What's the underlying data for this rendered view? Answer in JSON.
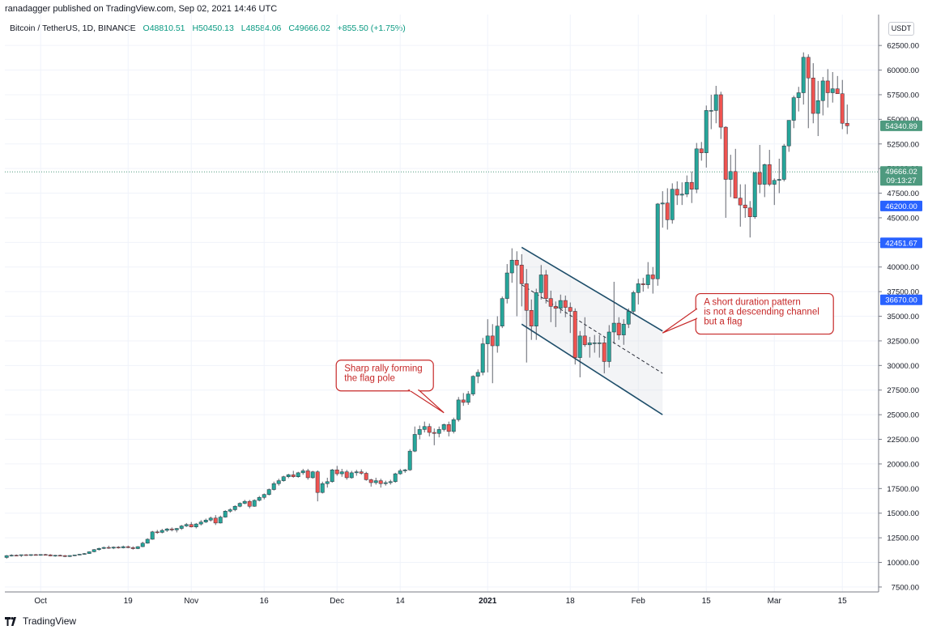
{
  "header": {
    "publisher": "ranadagger published on TradingView.com, Sep 02, 2021 14:46 UTC",
    "symbol": "Bitcoin / TetherUS, 1D, BINANCE",
    "open": "O48810.51",
    "high": "H50450.13",
    "low": "L48584.06",
    "close": "C49666.02",
    "change": "+855.50 (+1.75%)",
    "currency": "USDT"
  },
  "footer": {
    "brand": "TradingView"
  },
  "colors": {
    "up": "#26a69a",
    "down": "#ef5350",
    "accent_blue": "#2962ff",
    "price_green": "#4e9a7f",
    "annotation": "#c62828"
  },
  "icons": {
    "brand_logo": "tradingview-logo-icon"
  },
  "chart_data": {
    "type": "candlestick",
    "symbol": "BTCUSDT",
    "interval": "1D",
    "ylim": [
      7000,
      63500
    ],
    "y_scale": "linear",
    "grid": true,
    "y_ticks": [
      7500,
      10000,
      12500,
      15000,
      17500,
      20000,
      22500,
      25000,
      27500,
      30000,
      32500,
      35000,
      37500,
      40000,
      42500,
      45000,
      47500,
      50000,
      52500,
      55000,
      57500,
      60000,
      62500
    ],
    "x_ticks": [
      {
        "date": "2020-10-01",
        "label": "Oct"
      },
      {
        "date": "2020-10-19",
        "label": "19"
      },
      {
        "date": "2020-11-01",
        "label": "Nov"
      },
      {
        "date": "2020-11-16",
        "label": "16"
      },
      {
        "date": "2020-12-01",
        "label": "Dec"
      },
      {
        "date": "2020-12-14",
        "label": "14"
      },
      {
        "date": "2021-01-01",
        "label": "2021"
      },
      {
        "date": "2021-01-18",
        "label": "18"
      },
      {
        "date": "2021-02-01",
        "label": "Feb"
      },
      {
        "date": "2021-02-15",
        "label": "15"
      },
      {
        "date": "2021-03-01",
        "label": "Mar"
      },
      {
        "date": "2021-03-15",
        "label": "15"
      }
    ],
    "price_tags": [
      {
        "label": "54340.89",
        "value": 54340.89,
        "color": "#4e9a7f"
      },
      {
        "label": "49666.02",
        "sublabel": "09:13:27",
        "value": 49666.02,
        "color": "#4e9a7f"
      },
      {
        "label": "46200.00",
        "value": 46200,
        "color": "#2962ff"
      },
      {
        "label": "42451.67",
        "value": 42451.67,
        "color": "#2962ff"
      },
      {
        "label": "36670.00",
        "value": 36670,
        "color": "#2962ff"
      }
    ],
    "current_price_line": 49666.02,
    "channel": {
      "upper": [
        {
          "date": "2021-01-08",
          "value": 42000
        },
        {
          "date": "2021-02-06",
          "value": 33500
        }
      ],
      "lower": [
        {
          "date": "2021-01-08",
          "value": 34200
        },
        {
          "date": "2021-02-06",
          "value": 25000
        }
      ],
      "mid": [
        {
          "date": "2021-01-08",
          "value": 38200
        },
        {
          "date": "2021-02-06",
          "value": 29200
        }
      ]
    },
    "annotations": [
      {
        "text_lines": [
          "Sharp rally forming",
          "the flag pole"
        ],
        "date": "2020-12-15",
        "value": 27500,
        "target_date": "2020-12-23",
        "target_value": 25200
      },
      {
        "text_lines": [
          "A short duration pattern",
          "is not a descending channel",
          "but a flag"
        ],
        "date": "2021-02-07",
        "value": 35000,
        "target_date": "2021-02-06",
        "target_value": 33300
      }
    ],
    "start_date": "2020-09-24",
    "candles": [
      [
        10500,
        10750,
        10380,
        10690
      ],
      [
        10690,
        10820,
        10600,
        10730
      ],
      [
        10730,
        10800,
        10640,
        10700
      ],
      [
        10700,
        10760,
        10550,
        10780
      ],
      [
        10780,
        10830,
        10690,
        10740
      ],
      [
        10740,
        10800,
        10650,
        10790
      ],
      [
        10790,
        10850,
        10700,
        10760
      ],
      [
        10760,
        10820,
        10680,
        10800
      ],
      [
        10800,
        10860,
        10710,
        10770
      ],
      [
        10770,
        10840,
        10620,
        10660
      ],
      [
        10660,
        10760,
        10580,
        10720
      ],
      [
        10720,
        10790,
        10650,
        10690
      ],
      [
        10690,
        10750,
        10540,
        10600
      ],
      [
        10600,
        10720,
        10550,
        10700
      ],
      [
        10700,
        10780,
        10640,
        10760
      ],
      [
        10760,
        10860,
        10720,
        10830
      ],
      [
        10830,
        10950,
        10780,
        10900
      ],
      [
        10900,
        11120,
        10870,
        11080
      ],
      [
        11080,
        11350,
        11030,
        11300
      ],
      [
        11300,
        11500,
        11200,
        11420
      ],
      [
        11420,
        11600,
        11350,
        11520
      ],
      [
        11520,
        11700,
        11380,
        11450
      ],
      [
        11450,
        11620,
        11350,
        11550
      ],
      [
        11550,
        11650,
        11400,
        11480
      ],
      [
        11480,
        11700,
        11420,
        11600
      ],
      [
        11600,
        11700,
        11450,
        11500
      ],
      [
        11500,
        11640,
        11300,
        11400
      ],
      [
        11400,
        11650,
        11350,
        11600
      ],
      [
        11600,
        12100,
        11550,
        11950
      ],
      [
        11950,
        12450,
        11900,
        12350
      ],
      [
        12350,
        13200,
        12300,
        13100
      ],
      [
        13100,
        13300,
        12900,
        13050
      ],
      [
        13050,
        13400,
        12950,
        13250
      ],
      [
        13250,
        13500,
        13100,
        13400
      ],
      [
        13400,
        13550,
        13150,
        13300
      ],
      [
        13300,
        13500,
        13050,
        13450
      ],
      [
        13450,
        13800,
        13300,
        13700
      ],
      [
        13700,
        14000,
        13600,
        13850
      ],
      [
        13850,
        14100,
        13550,
        13600
      ],
      [
        13600,
        14000,
        13450,
        13900
      ],
      [
        13900,
        14300,
        13750,
        14100
      ],
      [
        14100,
        14450,
        14000,
        14300
      ],
      [
        14300,
        14650,
        14150,
        14500
      ],
      [
        14500,
        14800,
        13800,
        14000
      ],
      [
        14000,
        14750,
        13950,
        14600
      ],
      [
        14600,
        15300,
        14550,
        15200
      ],
      [
        15200,
        15500,
        15050,
        15350
      ],
      [
        15350,
        15800,
        15200,
        15700
      ],
      [
        15700,
        16100,
        15600,
        16000
      ],
      [
        16000,
        16350,
        15900,
        16200
      ],
      [
        16200,
        16350,
        15500,
        15700
      ],
      [
        15700,
        16400,
        15650,
        16300
      ],
      [
        16300,
        16750,
        16200,
        16600
      ],
      [
        16600,
        17000,
        16400,
        16900
      ],
      [
        16900,
        17500,
        16800,
        17400
      ],
      [
        17400,
        18200,
        17300,
        18000
      ],
      [
        18000,
        18500,
        17800,
        18300
      ],
      [
        18300,
        18800,
        18200,
        18700
      ],
      [
        18700,
        19000,
        18550,
        18900
      ],
      [
        18900,
        19300,
        18600,
        18700
      ],
      [
        18700,
        19200,
        18600,
        19100
      ],
      [
        19100,
        19500,
        18900,
        19300
      ],
      [
        19300,
        19500,
        18400,
        18600
      ],
      [
        18600,
        19300,
        18500,
        19200
      ],
      [
        19200,
        19350,
        16200,
        17100
      ],
      [
        17100,
        18200,
        17000,
        18000
      ],
      [
        18000,
        18600,
        17600,
        18200
      ],
      [
        18200,
        19500,
        18100,
        19400
      ],
      [
        19400,
        19800,
        18800,
        19000
      ],
      [
        19000,
        19500,
        18700,
        19200
      ],
      [
        19200,
        19400,
        18400,
        18600
      ],
      [
        18600,
        19300,
        18500,
        19100
      ],
      [
        19100,
        19400,
        18800,
        19200
      ],
      [
        19200,
        19450,
        18900,
        19050
      ],
      [
        19050,
        19200,
        18300,
        18400
      ],
      [
        18400,
        18500,
        17700,
        18100
      ],
      [
        18100,
        18600,
        17900,
        18300
      ],
      [
        18300,
        18500,
        17600,
        18000
      ],
      [
        18000,
        18300,
        17800,
        18100
      ],
      [
        18100,
        18400,
        17900,
        18200
      ],
      [
        18200,
        19100,
        18100,
        19000
      ],
      [
        19000,
        19500,
        18900,
        19300
      ],
      [
        19300,
        19500,
        19100,
        19400
      ],
      [
        19400,
        21500,
        19300,
        21300
      ],
      [
        21300,
        23800,
        21200,
        23000
      ],
      [
        23000,
        23900,
        22500,
        23500
      ],
      [
        23500,
        24300,
        23200,
        23800
      ],
      [
        23800,
        24100,
        22800,
        23200
      ],
      [
        23200,
        23600,
        21900,
        23100
      ],
      [
        23100,
        23800,
        22700,
        23500
      ],
      [
        23500,
        24100,
        23300,
        24000
      ],
      [
        24000,
        24300,
        22800,
        23300
      ],
      [
        23300,
        24700,
        23100,
        24500
      ],
      [
        24500,
        26800,
        24300,
        26500
      ],
      [
        26500,
        27200,
        25900,
        26250
      ],
      [
        26250,
        27400,
        26000,
        27100
      ],
      [
        27100,
        29000,
        26900,
        28900
      ],
      [
        28900,
        29600,
        28200,
        29300
      ],
      [
        29300,
        32800,
        29000,
        32200
      ],
      [
        32200,
        34700,
        29300,
        33000
      ],
      [
        33000,
        34200,
        28200,
        32000
      ],
      [
        32000,
        35000,
        31300,
        34000
      ],
      [
        34000,
        37000,
        33800,
        36800
      ],
      [
        36800,
        40300,
        36300,
        39400
      ],
      [
        39400,
        41900,
        38400,
        40700
      ],
      [
        40700,
        41600,
        35000,
        40200
      ],
      [
        40200,
        41300,
        36000,
        38300
      ],
      [
        38300,
        39800,
        30300,
        35600
      ],
      [
        35600,
        36700,
        32600,
        34000
      ],
      [
        34000,
        37800,
        32600,
        37400
      ],
      [
        37400,
        40200,
        36700,
        39200
      ],
      [
        39200,
        39700,
        36300,
        36800
      ],
      [
        36800,
        37600,
        34400,
        36000
      ],
      [
        36000,
        36500,
        33900,
        35800
      ],
      [
        35800,
        37200,
        35300,
        36600
      ],
      [
        36600,
        37100,
        34900,
        35900
      ],
      [
        35900,
        36400,
        33300,
        35500
      ],
      [
        35500,
        35800,
        30100,
        30800
      ],
      [
        30800,
        33500,
        28800,
        33000
      ],
      [
        33000,
        34900,
        31900,
        32100
      ],
      [
        32100,
        32900,
        30800,
        32300
      ],
      [
        32300,
        33100,
        31300,
        32300
      ],
      [
        32300,
        33100,
        30800,
        32300
      ],
      [
        32300,
        32900,
        29200,
        30400
      ],
      [
        30400,
        34100,
        29800,
        33400
      ],
      [
        33400,
        38500,
        32200,
        34300
      ],
      [
        34300,
        34900,
        32600,
        33100
      ],
      [
        33100,
        34700,
        32100,
        34200
      ],
      [
        34200,
        35800,
        33800,
        35500
      ],
      [
        35500,
        37600,
        35200,
        37400
      ],
      [
        37400,
        38800,
        36200,
        38300
      ],
      [
        38300,
        38900,
        37500,
        38200
      ],
      [
        38200,
        40500,
        37800,
        39200
      ],
      [
        39200,
        40000,
        37300,
        38800
      ],
      [
        38800,
        46500,
        38100,
        46400
      ],
      [
        46400,
        47700,
        44000,
        46500
      ],
      [
        46500,
        48000,
        43800,
        44800
      ],
      [
        44800,
        48500,
        44400,
        47900
      ],
      [
        47900,
        48700,
        46300,
        47300
      ],
      [
        47300,
        48600,
        46300,
        47400
      ],
      [
        47400,
        49300,
        47100,
        48600
      ],
      [
        48600,
        49700,
        46500,
        47900
      ],
      [
        47900,
        52600,
        47500,
        52000
      ],
      [
        52000,
        52700,
        50800,
        51600
      ],
      [
        51600,
        56400,
        50100,
        55900
      ],
      [
        55900,
        57500,
        54000,
        55900
      ],
      [
        55900,
        58400,
        54600,
        57500
      ],
      [
        57500,
        57800,
        53000,
        54200
      ],
      [
        54200,
        54300,
        45000,
        48900
      ],
      [
        48900,
        51400,
        47100,
        49700
      ],
      [
        49700,
        52000,
        47400,
        47000
      ],
      [
        47000,
        48400,
        44100,
        46300
      ],
      [
        46300,
        48400,
        45000,
        46000
      ],
      [
        46000,
        46700,
        43000,
        45100
      ],
      [
        45100,
        49600,
        44900,
        49600
      ],
      [
        49600,
        52400,
        47500,
        48400
      ],
      [
        48400,
        50500,
        47100,
        50400
      ],
      [
        50400,
        51900,
        48200,
        48400
      ],
      [
        48400,
        49000,
        46300,
        48800
      ],
      [
        48800,
        51000,
        47500,
        48900
      ],
      [
        48900,
        52500,
        48700,
        52300
      ],
      [
        52300,
        54900,
        51700,
        54900
      ],
      [
        54900,
        57400,
        54100,
        57200
      ],
      [
        57200,
        58300,
        55800,
        57700
      ],
      [
        57700,
        61800,
        56500,
        61300
      ],
      [
        61300,
        61600,
        54100,
        59200
      ],
      [
        59200,
        60700,
        54600,
        55600
      ],
      [
        55600,
        58900,
        53300,
        56900
      ],
      [
        56900,
        59300,
        55400,
        58900
      ],
      [
        58900,
        60100,
        56200,
        57700
      ],
      [
        57700,
        59800,
        56700,
        58100
      ],
      [
        58100,
        59400,
        57800,
        57600
      ],
      [
        57600,
        59000,
        54000,
        54600
      ],
      [
        54600,
        56500,
        53500,
        54340.89
      ]
    ]
  }
}
